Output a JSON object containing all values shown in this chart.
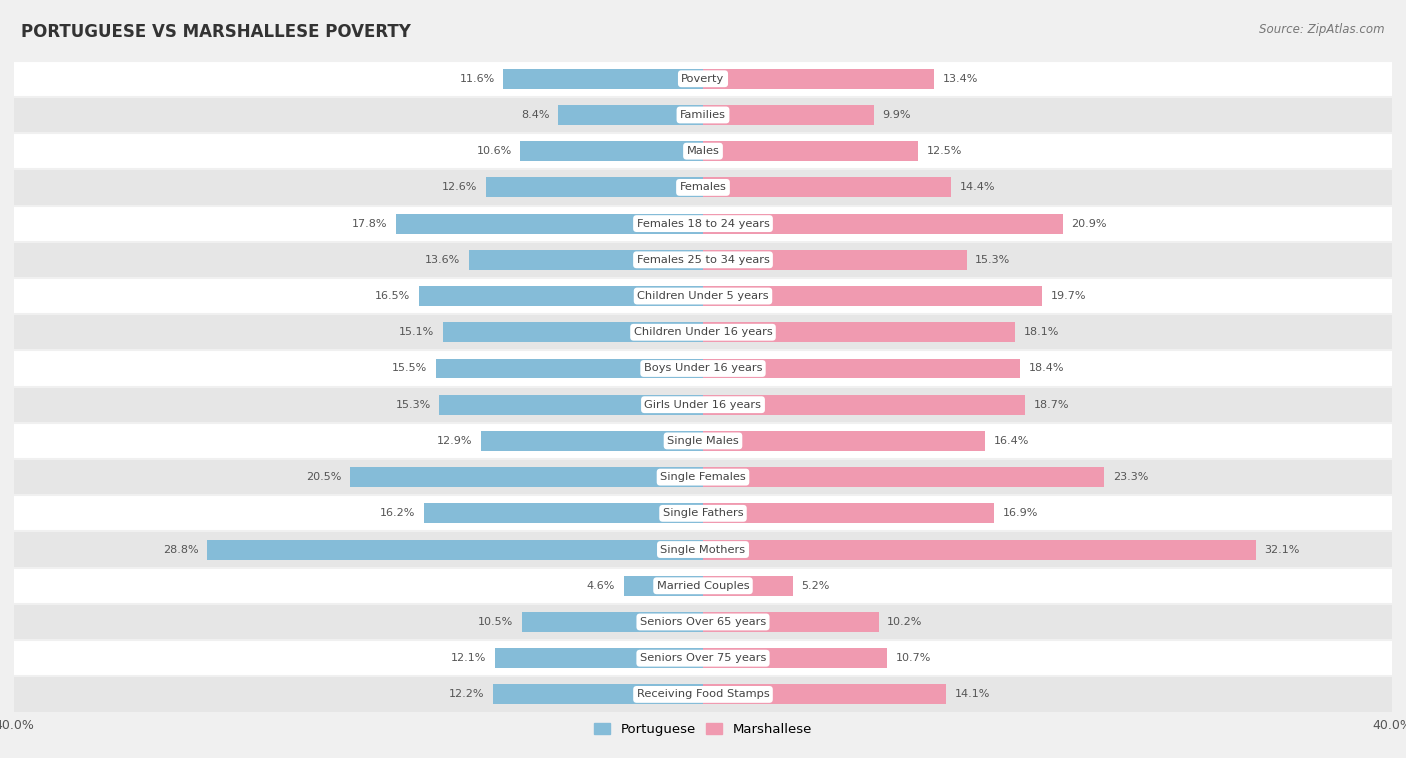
{
  "title": "PORTUGUESE VS MARSHALLESE POVERTY",
  "source": "Source: ZipAtlas.com",
  "categories": [
    "Poverty",
    "Families",
    "Males",
    "Females",
    "Females 18 to 24 years",
    "Females 25 to 34 years",
    "Children Under 5 years",
    "Children Under 16 years",
    "Boys Under 16 years",
    "Girls Under 16 years",
    "Single Males",
    "Single Females",
    "Single Fathers",
    "Single Mothers",
    "Married Couples",
    "Seniors Over 65 years",
    "Seniors Over 75 years",
    "Receiving Food Stamps"
  ],
  "portuguese": [
    11.6,
    8.4,
    10.6,
    12.6,
    17.8,
    13.6,
    16.5,
    15.1,
    15.5,
    15.3,
    12.9,
    20.5,
    16.2,
    28.8,
    4.6,
    10.5,
    12.1,
    12.2
  ],
  "marshallese": [
    13.4,
    9.9,
    12.5,
    14.4,
    20.9,
    15.3,
    19.7,
    18.1,
    18.4,
    18.7,
    16.4,
    23.3,
    16.9,
    32.1,
    5.2,
    10.2,
    10.7,
    14.1
  ],
  "portuguese_color": "#85bcd8",
  "marshallese_color": "#f09ab0",
  "background_color": "#f0f0f0",
  "row_bg_light": "#ffffff",
  "row_bg_dark": "#e6e6e6",
  "xlim": 40.0,
  "bar_height": 0.55,
  "legend_portuguese": "Portuguese",
  "legend_marshallese": "Marshallese"
}
